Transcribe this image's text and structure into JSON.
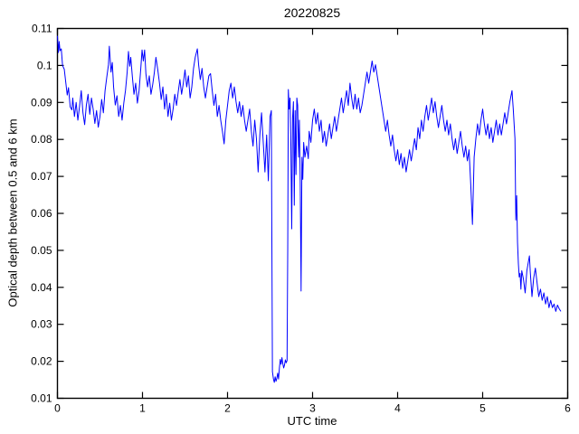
{
  "figure": {
    "title": "20220825",
    "xlabel": "UTC time",
    "ylabel": "Optical depth between 0.5 and 6 km"
  },
  "colors": {
    "line": "#0000ff",
    "axis": "#000000",
    "background": "#ffffff",
    "text": "#000000"
  },
  "chart_data": {
    "type": "line",
    "title": "20220825",
    "xlabel": "UTC time",
    "ylabel": "Optical depth between 0.5 and 6 km",
    "xlim": [
      0,
      6
    ],
    "ylim": [
      0.01,
      0.11
    ],
    "xticks": [
      0,
      1,
      2,
      3,
      4,
      5,
      6
    ],
    "xtick_labels": [
      "0",
      "1",
      "2",
      "3",
      "4",
      "5",
      "6"
    ],
    "yticks": [
      0.01,
      0.02,
      0.03,
      0.04,
      0.05,
      0.06,
      0.07,
      0.08,
      0.09,
      0.1,
      0.11
    ],
    "ytick_labels": [
      "0.01",
      "0.02",
      "0.03",
      "0.04",
      "0.05",
      "0.06",
      "0.07",
      "0.08",
      "0.09",
      "0.1",
      "0.11"
    ],
    "grid": false,
    "legend": null,
    "line_color": "#0000ff",
    "series_name": "optical depth between 0.5 and 6 km",
    "points": [
      [
        0.0,
        0.108
      ],
      [
        0.012,
        0.1035
      ],
      [
        0.02,
        0.1065
      ],
      [
        0.03,
        0.104
      ],
      [
        0.045,
        0.1045
      ],
      [
        0.06,
        0.1
      ],
      [
        0.08,
        0.099
      ],
      [
        0.1,
        0.095
      ],
      [
        0.115,
        0.092
      ],
      [
        0.13,
        0.094
      ],
      [
        0.15,
        0.0888
      ],
      [
        0.17,
        0.088
      ],
      [
        0.18,
        0.0912
      ],
      [
        0.2,
        0.0862
      ],
      [
        0.22,
        0.09
      ],
      [
        0.24,
        0.0852
      ],
      [
        0.26,
        0.089
      ],
      [
        0.28,
        0.0932
      ],
      [
        0.3,
        0.0872
      ],
      [
        0.32,
        0.084
      ],
      [
        0.34,
        0.0893
      ],
      [
        0.36,
        0.0922
      ],
      [
        0.38,
        0.0868
      ],
      [
        0.4,
        0.0912
      ],
      [
        0.42,
        0.0882
      ],
      [
        0.44,
        0.0843
      ],
      [
        0.46,
        0.0878
      ],
      [
        0.48,
        0.0833
      ],
      [
        0.5,
        0.0862
      ],
      [
        0.52,
        0.0908
      ],
      [
        0.54,
        0.0872
      ],
      [
        0.56,
        0.0932
      ],
      [
        0.58,
        0.0968
      ],
      [
        0.6,
        0.1002
      ],
      [
        0.61,
        0.1052
      ],
      [
        0.62,
        0.1018
      ],
      [
        0.63,
        0.0982
      ],
      [
        0.645,
        0.1008
      ],
      [
        0.66,
        0.0942
      ],
      [
        0.68,
        0.0893
      ],
      [
        0.7,
        0.0918
      ],
      [
        0.72,
        0.0862
      ],
      [
        0.74,
        0.0892
      ],
      [
        0.76,
        0.0852
      ],
      [
        0.78,
        0.0898
      ],
      [
        0.8,
        0.0932
      ],
      [
        0.82,
        0.0982
      ],
      [
        0.835,
        0.1038
      ],
      [
        0.85,
        0.0998
      ],
      [
        0.862,
        0.1022
      ],
      [
        0.88,
        0.0972
      ],
      [
        0.9,
        0.0922
      ],
      [
        0.92,
        0.0952
      ],
      [
        0.94,
        0.0898
      ],
      [
        0.96,
        0.0932
      ],
      [
        0.98,
        0.0992
      ],
      [
        0.995,
        0.1042
      ],
      [
        1.01,
        0.1012
      ],
      [
        1.025,
        0.1042
      ],
      [
        1.04,
        0.0978
      ],
      [
        1.06,
        0.0942
      ],
      [
        1.08,
        0.0972
      ],
      [
        1.1,
        0.0922
      ],
      [
        1.12,
        0.0948
      ],
      [
        1.14,
        0.0982
      ],
      [
        1.158,
        0.1022
      ],
      [
        1.18,
        0.0988
      ],
      [
        1.2,
        0.0952
      ],
      [
        1.22,
        0.0908
      ],
      [
        1.24,
        0.0942
      ],
      [
        1.26,
        0.0882
      ],
      [
        1.28,
        0.0922
      ],
      [
        1.3,
        0.0862
      ],
      [
        1.32,
        0.0898
      ],
      [
        1.34,
        0.0852
      ],
      [
        1.36,
        0.0882
      ],
      [
        1.38,
        0.0922
      ],
      [
        1.4,
        0.0892
      ],
      [
        1.42,
        0.0928
      ],
      [
        1.44,
        0.0962
      ],
      [
        1.46,
        0.0922
      ],
      [
        1.48,
        0.0952
      ],
      [
        1.5,
        0.0988
      ],
      [
        1.52,
        0.0942
      ],
      [
        1.54,
        0.0972
      ],
      [
        1.56,
        0.0912
      ],
      [
        1.58,
        0.0942
      ],
      [
        1.6,
        0.0992
      ],
      [
        1.62,
        0.1022
      ],
      [
        1.645,
        0.1045
      ],
      [
        1.66,
        0.1002
      ],
      [
        1.68,
        0.0962
      ],
      [
        1.7,
        0.0992
      ],
      [
        1.72,
        0.0942
      ],
      [
        1.74,
        0.0912
      ],
      [
        1.76,
        0.0942
      ],
      [
        1.78,
        0.0972
      ],
      [
        1.8,
        0.0978
      ],
      [
        1.82,
        0.0932
      ],
      [
        1.84,
        0.0892
      ],
      [
        1.86,
        0.0922
      ],
      [
        1.88,
        0.0862
      ],
      [
        1.9,
        0.0892
      ],
      [
        1.92,
        0.0852
      ],
      [
        1.94,
        0.0822
      ],
      [
        1.96,
        0.0788
      ],
      [
        1.98,
        0.0852
      ],
      [
        2.0,
        0.0892
      ],
      [
        2.02,
        0.0932
      ],
      [
        2.04,
        0.0952
      ],
      [
        2.06,
        0.0912
      ],
      [
        2.08,
        0.0942
      ],
      [
        2.1,
        0.0902
      ],
      [
        2.12,
        0.0872
      ],
      [
        2.14,
        0.0902
      ],
      [
        2.16,
        0.0862
      ],
      [
        2.18,
        0.0892
      ],
      [
        2.2,
        0.0852
      ],
      [
        2.22,
        0.0822
      ],
      [
        2.24,
        0.0852
      ],
      [
        2.26,
        0.0882
      ],
      [
        2.28,
        0.0822
      ],
      [
        2.3,
        0.0782
      ],
      [
        2.32,
        0.0852
      ],
      [
        2.34,
        0.0802
      ],
      [
        2.36,
        0.0712
      ],
      [
        2.38,
        0.0812
      ],
      [
        2.4,
        0.0872
      ],
      [
        2.42,
        0.0792
      ],
      [
        2.44,
        0.0712
      ],
      [
        2.46,
        0.0812
      ],
      [
        2.48,
        0.0688
      ],
      [
        2.5,
        0.0862
      ],
      [
        2.515,
        0.0878
      ],
      [
        2.52,
        0.06
      ],
      [
        2.528,
        0.0172
      ],
      [
        2.54,
        0.0152
      ],
      [
        2.55,
        0.0143
      ],
      [
        2.56,
        0.0158
      ],
      [
        2.57,
        0.0146
      ],
      [
        2.58,
        0.0154
      ],
      [
        2.59,
        0.0168
      ],
      [
        2.6,
        0.0152
      ],
      [
        2.61,
        0.0182
      ],
      [
        2.62,
        0.0205
      ],
      [
        2.63,
        0.0192
      ],
      [
        2.64,
        0.021
      ],
      [
        2.65,
        0.0194
      ],
      [
        2.66,
        0.0182
      ],
      [
        2.67,
        0.019
      ],
      [
        2.68,
        0.0204
      ],
      [
        2.69,
        0.0196
      ],
      [
        2.7,
        0.0202
      ],
      [
        2.708,
        0.05
      ],
      [
        2.715,
        0.0935
      ],
      [
        2.725,
        0.0882
      ],
      [
        2.735,
        0.0912
      ],
      [
        2.745,
        0.0782
      ],
      [
        2.755,
        0.0558
      ],
      [
        2.765,
        0.0858
      ],
      [
        2.775,
        0.0902
      ],
      [
        2.785,
        0.0622
      ],
      [
        2.795,
        0.0878
      ],
      [
        2.805,
        0.0705
      ],
      [
        2.815,
        0.0912
      ],
      [
        2.825,
        0.0892
      ],
      [
        2.835,
        0.0752
      ],
      [
        2.845,
        0.0852
      ],
      [
        2.855,
        0.0682
      ],
      [
        2.865,
        0.039
      ],
      [
        2.875,
        0.0752
      ],
      [
        2.885,
        0.0692
      ],
      [
        2.895,
        0.0792
      ],
      [
        2.91,
        0.0752
      ],
      [
        2.93,
        0.0782
      ],
      [
        2.95,
        0.0748
      ],
      [
        2.96,
        0.0822
      ],
      [
        2.98,
        0.0792
      ],
      [
        3.0,
        0.0852
      ],
      [
        3.02,
        0.0882
      ],
      [
        3.04,
        0.0842
      ],
      [
        3.06,
        0.0872
      ],
      [
        3.08,
        0.0822
      ],
      [
        3.1,
        0.0852
      ],
      [
        3.12,
        0.0792
      ],
      [
        3.14,
        0.0822
      ],
      [
        3.16,
        0.0782
      ],
      [
        3.18,
        0.0812
      ],
      [
        3.2,
        0.0842
      ],
      [
        3.22,
        0.0802
      ],
      [
        3.24,
        0.0832
      ],
      [
        3.26,
        0.0862
      ],
      [
        3.28,
        0.0822
      ],
      [
        3.3,
        0.0852
      ],
      [
        3.32,
        0.0882
      ],
      [
        3.34,
        0.0912
      ],
      [
        3.36,
        0.0872
      ],
      [
        3.38,
        0.0902
      ],
      [
        3.4,
        0.0932
      ],
      [
        3.42,
        0.0892
      ],
      [
        3.44,
        0.0952
      ],
      [
        3.46,
        0.0912
      ],
      [
        3.48,
        0.0882
      ],
      [
        3.5,
        0.0922
      ],
      [
        3.52,
        0.0882
      ],
      [
        3.54,
        0.0912
      ],
      [
        3.56,
        0.0872
      ],
      [
        3.58,
        0.0892
      ],
      [
        3.6,
        0.0922
      ],
      [
        3.62,
        0.0952
      ],
      [
        3.64,
        0.0982
      ],
      [
        3.66,
        0.0952
      ],
      [
        3.68,
        0.0982
      ],
      [
        3.7,
        0.1012
      ],
      [
        3.72,
        0.0982
      ],
      [
        3.74,
        0.1002
      ],
      [
        3.76,
        0.0972
      ],
      [
        3.78,
        0.0942
      ],
      [
        3.8,
        0.0912
      ],
      [
        3.82,
        0.0882
      ],
      [
        3.84,
        0.0852
      ],
      [
        3.86,
        0.0822
      ],
      [
        3.88,
        0.0852
      ],
      [
        3.9,
        0.0812
      ],
      [
        3.92,
        0.0782
      ],
      [
        3.94,
        0.0812
      ],
      [
        3.96,
        0.0772
      ],
      [
        3.98,
        0.0742
      ],
      [
        4.0,
        0.0772
      ],
      [
        4.02,
        0.0732
      ],
      [
        4.04,
        0.0762
      ],
      [
        4.06,
        0.0722
      ],
      [
        4.08,
        0.0752
      ],
      [
        4.1,
        0.0712
      ],
      [
        4.12,
        0.0742
      ],
      [
        4.14,
        0.0772
      ],
      [
        4.16,
        0.0742
      ],
      [
        4.18,
        0.0772
      ],
      [
        4.2,
        0.0802
      ],
      [
        4.22,
        0.0772
      ],
      [
        4.24,
        0.0832
      ],
      [
        4.26,
        0.0802
      ],
      [
        4.28,
        0.0852
      ],
      [
        4.3,
        0.0822
      ],
      [
        4.32,
        0.0862
      ],
      [
        4.34,
        0.0892
      ],
      [
        4.36,
        0.0852
      ],
      [
        4.38,
        0.0882
      ],
      [
        4.4,
        0.0912
      ],
      [
        4.42,
        0.0872
      ],
      [
        4.44,
        0.0902
      ],
      [
        4.46,
        0.0862
      ],
      [
        4.48,
        0.0832
      ],
      [
        4.5,
        0.0862
      ],
      [
        4.52,
        0.0892
      ],
      [
        4.54,
        0.0852
      ],
      [
        4.56,
        0.0822
      ],
      [
        4.58,
        0.0852
      ],
      [
        4.6,
        0.0812
      ],
      [
        4.62,
        0.0842
      ],
      [
        4.64,
        0.0802
      ],
      [
        4.66,
        0.0772
      ],
      [
        4.68,
        0.0802
      ],
      [
        4.7,
        0.0762
      ],
      [
        4.72,
        0.0792
      ],
      [
        4.74,
        0.0822
      ],
      [
        4.76,
        0.0782
      ],
      [
        4.78,
        0.0752
      ],
      [
        4.8,
        0.0782
      ],
      [
        4.82,
        0.0742
      ],
      [
        4.84,
        0.0772
      ],
      [
        4.86,
        0.0678
      ],
      [
        4.88,
        0.057
      ],
      [
        4.9,
        0.0752
      ],
      [
        4.92,
        0.0802
      ],
      [
        4.94,
        0.0842
      ],
      [
        4.96,
        0.0812
      ],
      [
        4.98,
        0.0852
      ],
      [
        5.0,
        0.0882
      ],
      [
        5.02,
        0.0842
      ],
      [
        5.04,
        0.0812
      ],
      [
        5.06,
        0.0842
      ],
      [
        5.08,
        0.0802
      ],
      [
        5.1,
        0.0832
      ],
      [
        5.12,
        0.0792
      ],
      [
        5.14,
        0.0822
      ],
      [
        5.16,
        0.0852
      ],
      [
        5.18,
        0.0812
      ],
      [
        5.2,
        0.0842
      ],
      [
        5.22,
        0.0812
      ],
      [
        5.24,
        0.0842
      ],
      [
        5.26,
        0.0872
      ],
      [
        5.28,
        0.0842
      ],
      [
        5.3,
        0.0872
      ],
      [
        5.32,
        0.0902
      ],
      [
        5.345,
        0.0932
      ],
      [
        5.36,
        0.0882
      ],
      [
        5.37,
        0.0842
      ],
      [
        5.38,
        0.0802
      ],
      [
        5.39,
        0.0582
      ],
      [
        5.4,
        0.0648
      ],
      [
        5.41,
        0.0522
      ],
      [
        5.42,
        0.0465
      ],
      [
        5.43,
        0.0428
      ],
      [
        5.44,
        0.0438
      ],
      [
        5.45,
        0.0395
      ],
      [
        5.46,
        0.0445
      ],
      [
        5.48,
        0.0422
      ],
      [
        5.5,
        0.0385
      ],
      [
        5.52,
        0.0445
      ],
      [
        5.54,
        0.0472
      ],
      [
        5.55,
        0.0485
      ],
      [
        5.56,
        0.0442
      ],
      [
        5.58,
        0.0375
      ],
      [
        5.6,
        0.0425
      ],
      [
        5.62,
        0.0452
      ],
      [
        5.64,
        0.0412
      ],
      [
        5.66,
        0.0375
      ],
      [
        5.68,
        0.0395
      ],
      [
        5.7,
        0.0365
      ],
      [
        5.72,
        0.0385
      ],
      [
        5.74,
        0.0355
      ],
      [
        5.76,
        0.0375
      ],
      [
        5.78,
        0.0345
      ],
      [
        5.8,
        0.0365
      ],
      [
        5.82,
        0.0345
      ],
      [
        5.84,
        0.0355
      ],
      [
        5.86,
        0.0335
      ],
      [
        5.88,
        0.0352
      ],
      [
        5.9,
        0.0342
      ],
      [
        5.92,
        0.0335
      ]
    ]
  }
}
